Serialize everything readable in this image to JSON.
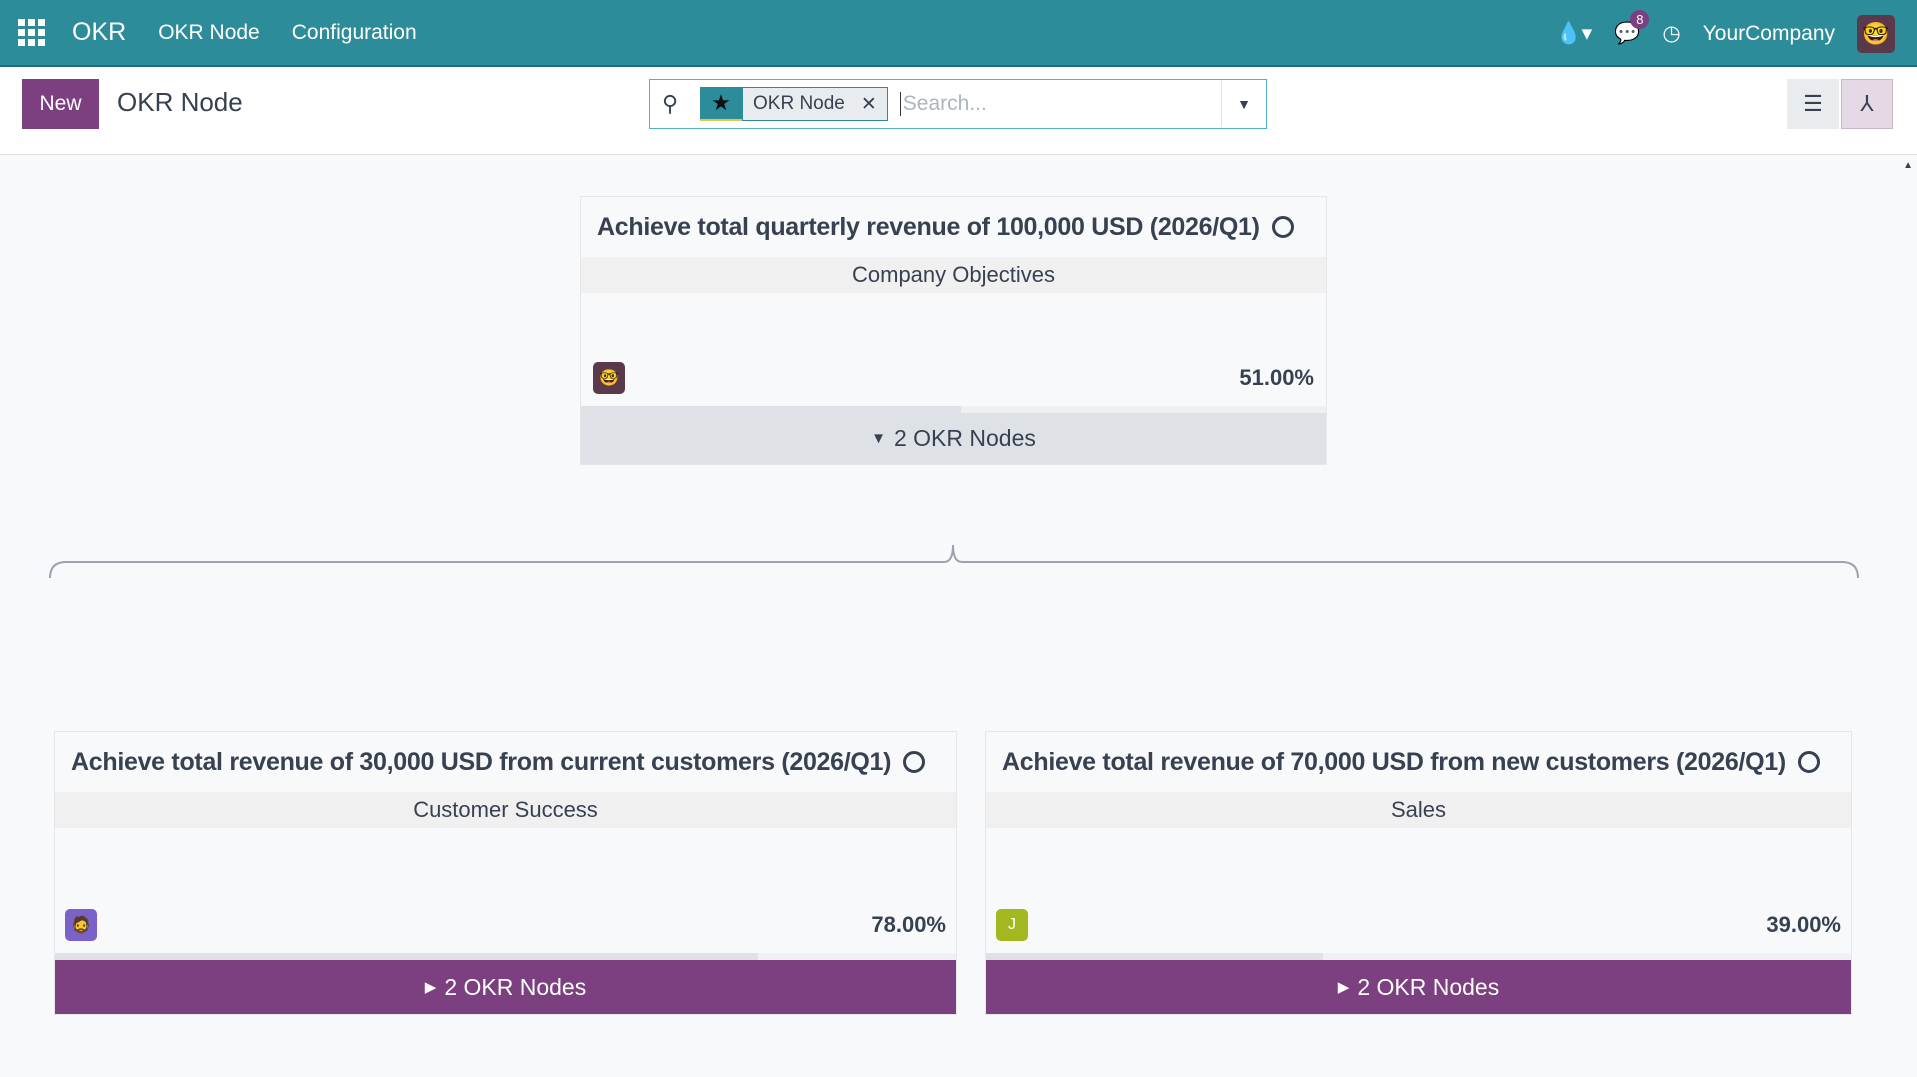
{
  "topbar": {
    "brand": "OKR",
    "menu": [
      "OKR Node",
      "Configuration"
    ],
    "messages_count": "8",
    "company": "YourCompany",
    "icons": [
      "apps-icon",
      "drop-icon",
      "chat-icon",
      "clock-icon"
    ]
  },
  "control_panel": {
    "new_label": "New",
    "title": "OKR Node",
    "facet": "OKR Node",
    "search_placeholder": "Search..."
  },
  "colors": {
    "topbar": "#2d8c9a",
    "primary": "#7c3f80"
  },
  "root": {
    "title": "Achieve total quarterly revenue of 100,000 USD (2026/Q1)",
    "team": "Company Objectives",
    "progress": "51.00%",
    "progress_value": 51,
    "children_label": "2 OKR Nodes",
    "expanded": true
  },
  "children": [
    {
      "title": "Achieve total revenue of 30,000 USD from current customers (2026/Q1)",
      "team": "Customer Success",
      "progress": "78.00%",
      "progress_value": 78,
      "children_label": "2 OKR Nodes",
      "avatar": ""
    },
    {
      "title": "Achieve total revenue of 70,000 USD from new customers (2026/Q1)",
      "team": "Sales",
      "progress": "39.00%",
      "progress_value": 39,
      "children_label": "2 OKR Nodes",
      "avatar": "J"
    }
  ]
}
